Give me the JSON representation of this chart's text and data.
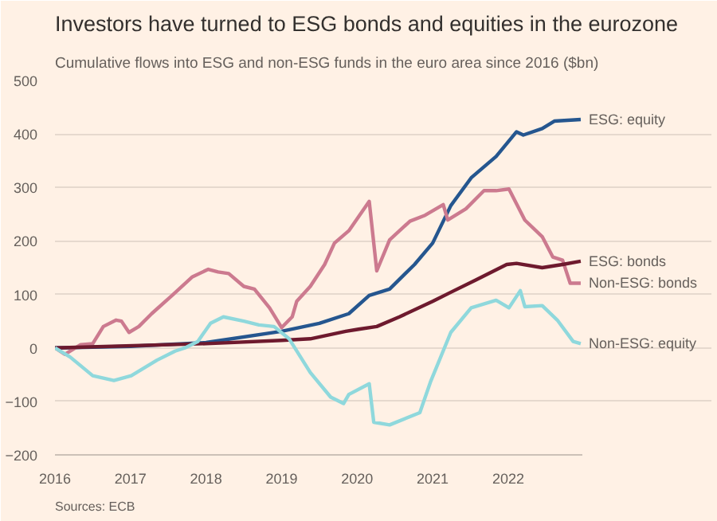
{
  "chart_data": {
    "type": "line",
    "title": "Investors have turned to ESG bonds and equities in the eurozone",
    "subtitle": "Cumulative flows into ESG and non-ESG funds in the euro area since 2016 ($bn)",
    "annotations": [
      "Sources: ECB"
    ],
    "xlim": [
      2016,
      2022.98
    ],
    "xticks": [
      2016,
      2017,
      2018,
      2019,
      2020,
      2021,
      2022
    ],
    "ylim": [
      -200,
      500
    ],
    "yticks": [
      -200,
      -100,
      0,
      100,
      200,
      300,
      400,
      500
    ],
    "grid": "y",
    "line_style": "solid",
    "marker": "none",
    "series": [
      {
        "name": "ESG: equity",
        "color": "#25568f",
        "x": [
          2016,
          2017,
          2018,
          2019,
          2019.5,
          2019.89,
          2020.16,
          2020.43,
          2020.76,
          2021.0,
          2021.24,
          2021.51,
          2021.84,
          2022.11,
          2022.2,
          2022.45,
          2022.61,
          2022.96
        ],
        "values": [
          0,
          3,
          10,
          31,
          46,
          64,
          98,
          110,
          156,
          196,
          266,
          318,
          358,
          404,
          398,
          410,
          424,
          427
        ]
      },
      {
        "name": "Non-ESG: bonds",
        "color": "#cc7a8f",
        "x": [
          2016,
          2016.13,
          2016.34,
          2016.5,
          2016.64,
          2016.81,
          2016.88,
          2016.98,
          2017.11,
          2017.28,
          2017.55,
          2017.82,
          2018.03,
          2018.16,
          2018.3,
          2018.5,
          2018.64,
          2018.84,
          2019.0,
          2019.14,
          2019.2,
          2019.38,
          2019.57,
          2019.7,
          2019.89,
          2020.16,
          2020.26,
          2020.43,
          2020.7,
          2020.9,
          2021.14,
          2021.2,
          2021.44,
          2021.68,
          2021.84,
          2022.01,
          2022.22,
          2022.45,
          2022.59,
          2022.72,
          2022.82,
          2022.96
        ],
        "values": [
          0,
          -12,
          6,
          8,
          40,
          52,
          50,
          29,
          40,
          64,
          98,
          133,
          147,
          142,
          139,
          115,
          110,
          75,
          38,
          58,
          87,
          115,
          156,
          196,
          219,
          274,
          144,
          202,
          237,
          248,
          268,
          239,
          260,
          294,
          294,
          297,
          239,
          208,
          170,
          164,
          121,
          121
        ]
      },
      {
        "name": "ESG: bonds",
        "color": "#6e1a2e",
        "x": [
          2016,
          2018,
          2019,
          2019.38,
          2019.85,
          2020.02,
          2020.26,
          2020.56,
          2021.0,
          2021.24,
          2021.57,
          2021.98,
          2022.11,
          2022.45,
          2022.72,
          2022.96
        ],
        "values": [
          0,
          8,
          14,
          17,
          31,
          35,
          40,
          58,
          87,
          104,
          127,
          156,
          158,
          150,
          156,
          162
        ]
      },
      {
        "name": "Non-ESG: equity",
        "color": "#8fd8dc",
        "x": [
          2016,
          2016.2,
          2016.5,
          2016.78,
          2017.01,
          2017.35,
          2017.59,
          2017.72,
          2017.89,
          2018.06,
          2018.23,
          2018.5,
          2018.7,
          2018.9,
          2019.1,
          2019.38,
          2019.65,
          2019.82,
          2019.89,
          2020.16,
          2020.22,
          2020.43,
          2020.83,
          2020.97,
          2021.24,
          2021.51,
          2021.84,
          2022.01,
          2022.16,
          2022.22,
          2022.45,
          2022.65,
          2022.86,
          2022.96
        ],
        "values": [
          0,
          -17,
          -52,
          -61,
          -52,
          -23,
          -6,
          0,
          12,
          46,
          58,
          50,
          43,
          40,
          17,
          -46,
          -92,
          -104,
          -87,
          -67,
          -139,
          -144,
          -121,
          -64,
          29,
          75,
          89,
          75,
          107,
          77,
          79,
          52,
          12,
          8
        ]
      }
    ]
  }
}
